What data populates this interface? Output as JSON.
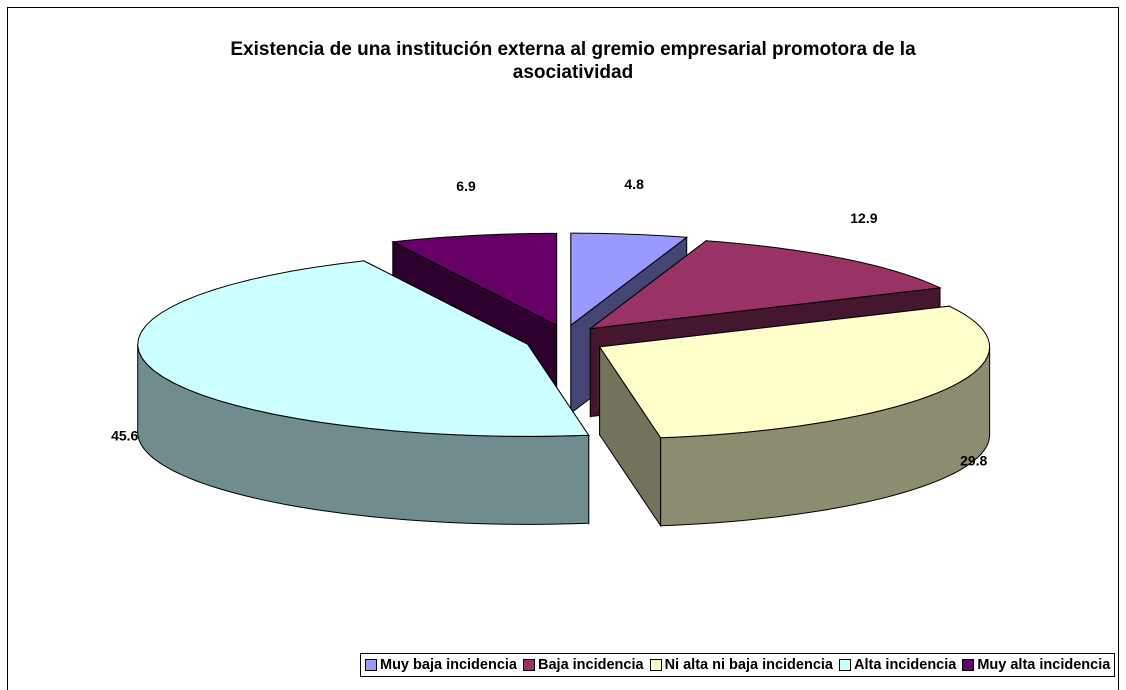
{
  "chart_data": {
    "type": "pie3d",
    "title": "Existencia de una institución externa al gremio empresarial promotora de la asociatividad",
    "categories": [
      "Muy baja incidencia",
      "Baja incidencia",
      "Ni alta ni baja incidencia",
      "Alta incidencia",
      "Muy alta incidencia"
    ],
    "values": [
      4.8,
      12.9,
      29.8,
      45.6,
      6.9
    ],
    "colors": [
      "#9999ff",
      "#993366",
      "#ffffcc",
      "#ccffff",
      "#660066"
    ],
    "legend": "bottom"
  }
}
